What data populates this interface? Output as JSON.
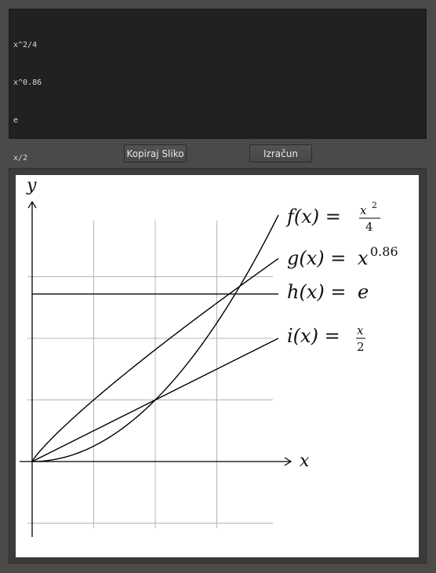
{
  "editor": {
    "lines": [
      "x^2/4",
      "x^0.86",
      "e",
      "x/2"
    ]
  },
  "buttons": {
    "copy_image": "Kopiraj Sliko",
    "calculate": "Izračun"
  },
  "plot": {
    "y_axis_label": "y",
    "x_axis_label": "x",
    "functions": [
      {
        "name": "f",
        "expr": "x^2/4",
        "label_lhs": "f(x) =",
        "num": "x",
        "num_sup": "2",
        "den": "4"
      },
      {
        "name": "g",
        "expr": "x^0.86",
        "label_lhs": "g(x) =",
        "base": "x",
        "sup": "0.86"
      },
      {
        "name": "h",
        "expr": "e",
        "label_lhs": "h(x) =",
        "rhs": "e"
      },
      {
        "name": "i",
        "expr": "x/2",
        "label_lhs": "i(x) =",
        "num": "x",
        "den": "2"
      }
    ],
    "colors": {
      "curve": "#000000",
      "grid": "#b4b4b4",
      "background": "#ffffff"
    }
  },
  "chart_data": {
    "type": "line",
    "xlim": [
      -0.2,
      4.2
    ],
    "ylim": [
      -1.2,
      3.2
    ],
    "grid": true,
    "series": [
      {
        "name": "f(x) = x^2/4",
        "x": [
          0,
          0.5,
          1,
          1.5,
          2,
          2.5,
          3,
          3.5,
          4
        ],
        "y": [
          0,
          0.0625,
          0.25,
          0.5625,
          1,
          1.5625,
          2.25,
          3.0625,
          4
        ]
      },
      {
        "name": "g(x) = x^0.86",
        "x": [
          0,
          0.5,
          1,
          1.5,
          2,
          2.5,
          3,
          3.5,
          4
        ],
        "y": [
          0,
          0.551,
          1,
          1.417,
          1.815,
          2.2,
          2.572,
          2.936,
          3.291
        ]
      },
      {
        "name": "h(x) = e",
        "x": [
          0,
          4
        ],
        "y": [
          2.718,
          2.718
        ]
      },
      {
        "name": "i(x) = x/2",
        "x": [
          0,
          4
        ],
        "y": [
          0,
          2
        ]
      }
    ]
  }
}
